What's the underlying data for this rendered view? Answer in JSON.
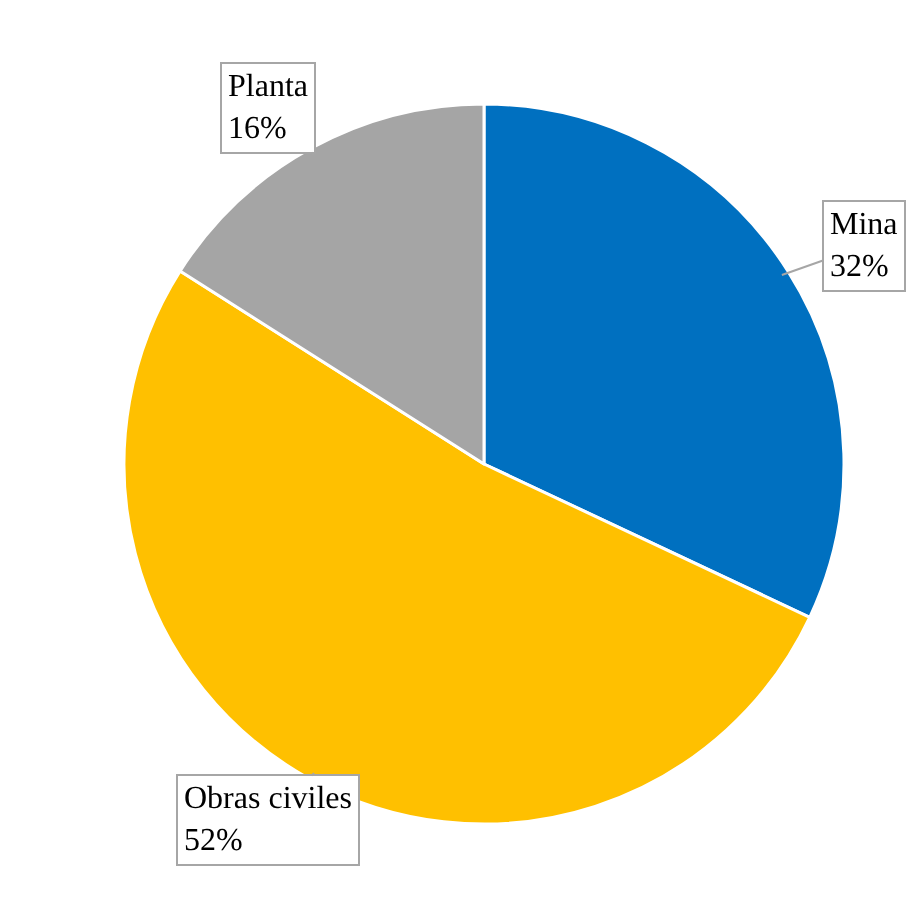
{
  "chart_data": {
    "type": "pie",
    "categories": [
      "Mina",
      "Obras civiles",
      "Planta"
    ],
    "values": [
      32,
      52,
      16
    ],
    "colors": [
      "#0070c0",
      "#ffc000",
      "#a5a5a5"
    ],
    "value_labels": [
      "32%",
      "52%",
      "16%"
    ]
  }
}
